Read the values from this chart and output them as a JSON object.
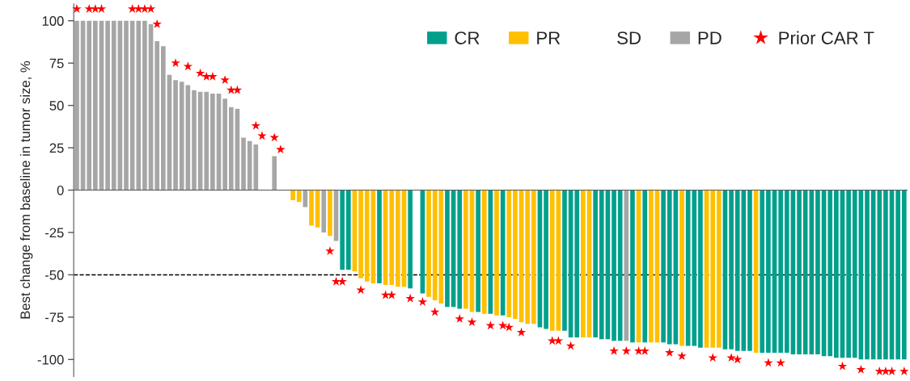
{
  "chart_data": {
    "type": "bar",
    "ylabel": "Best change from baseline in tumor size, %",
    "categories": [
      null,
      null,
      null,
      null,
      null,
      null,
      null,
      null,
      null,
      null,
      null,
      null,
      null,
      null,
      null,
      null,
      null,
      null,
      null,
      null,
      null,
      null,
      null,
      null,
      null,
      null,
      null,
      null,
      null,
      null,
      null,
      null,
      null,
      null,
      null,
      null,
      null,
      null,
      null,
      null,
      null,
      null,
      null,
      null,
      null,
      null,
      null,
      null,
      null,
      null,
      null,
      null,
      null,
      null,
      null,
      null,
      null,
      null,
      null,
      null,
      null,
      null,
      null,
      null,
      null,
      null,
      null,
      null,
      null,
      null,
      null,
      null,
      null,
      null,
      null,
      null,
      null,
      null,
      null,
      null,
      null,
      null,
      null,
      null,
      null,
      null,
      null,
      null,
      null,
      null,
      null,
      null,
      null,
      null,
      null,
      null,
      null,
      null,
      null,
      null,
      null,
      null,
      null,
      null,
      null,
      null,
      null,
      null,
      null,
      null,
      null,
      null,
      null,
      null,
      null,
      null,
      null,
      null,
      null,
      null,
      null,
      null,
      null,
      null,
      null,
      null,
      null,
      null,
      null,
      null,
      null,
      null,
      null,
      null,
      null
    ],
    "ylim": [
      -110,
      110
    ],
    "yticks": [
      -100,
      -75,
      -50,
      -25,
      0,
      25,
      50,
      75,
      100
    ],
    "tick_labels": "y",
    "legend": "top right",
    "stacked": true,
    "ref_lines": [
      {
        "axis": "y",
        "value": -50,
        "color": "#000000",
        "line_style": "dashed"
      }
    ],
    "series": [
      {
        "name": "CR",
        "color": "#00a08c",
        "values": [
          null,
          null,
          null,
          null,
          null,
          null,
          null,
          null,
          null,
          null,
          null,
          null,
          null,
          null,
          null,
          null,
          null,
          null,
          null,
          null,
          null,
          null,
          null,
          null,
          null,
          null,
          null,
          null,
          null,
          null,
          null,
          null,
          null,
          null,
          null,
          null,
          null,
          null,
          null,
          null,
          null,
          null,
          null,
          -47,
          -47,
          null,
          null,
          null,
          null,
          -55,
          null,
          null,
          null,
          null,
          -58,
          null,
          -61,
          null,
          null,
          null,
          -69,
          -69,
          -70,
          null,
          null,
          -72,
          null,
          -73,
          null,
          -74,
          null,
          null,
          null,
          null,
          null,
          -81,
          -82,
          null,
          null,
          -83,
          -87,
          -87,
          null,
          null,
          -87,
          -88,
          -88,
          -89,
          -89,
          null,
          -90,
          null,
          -90,
          null,
          null,
          -90,
          -91,
          -91,
          null,
          -92,
          -92,
          -93,
          null,
          null,
          null,
          -94,
          -94,
          -95,
          -95,
          -95,
          null,
          -96,
          -96,
          -96,
          -96,
          -96,
          -97,
          -97,
          -97,
          -97,
          -97,
          -98,
          -98,
          -99,
          -99,
          -99,
          -99,
          -100,
          -100,
          -100,
          -100,
          -100,
          -100,
          -100,
          -100
        ]
      },
      {
        "name": "PR",
        "color": "#ffc000",
        "values": [
          null,
          null,
          null,
          null,
          null,
          null,
          null,
          null,
          null,
          null,
          null,
          null,
          null,
          null,
          null,
          null,
          null,
          null,
          null,
          null,
          null,
          null,
          null,
          null,
          null,
          null,
          null,
          null,
          null,
          null,
          null,
          null,
          null,
          null,
          null,
          -6,
          -7,
          null,
          -21,
          -22,
          null,
          -27,
          null,
          null,
          null,
          -48,
          -52,
          -54,
          -55,
          null,
          -56,
          -56,
          -57,
          -57,
          null,
          null,
          null,
          -63,
          -65,
          -67,
          null,
          null,
          null,
          -70,
          -72,
          null,
          -73,
          null,
          -74,
          null,
          -75,
          -76,
          -78,
          -79,
          -79,
          null,
          null,
          -83,
          -83,
          null,
          null,
          null,
          -87,
          -87,
          null,
          null,
          null,
          null,
          null,
          null,
          null,
          -90,
          null,
          -90,
          -90,
          null,
          null,
          null,
          -92,
          null,
          null,
          null,
          -93,
          -93,
          -93,
          null,
          null,
          null,
          null,
          null,
          -96,
          null,
          null,
          null,
          null,
          null,
          null,
          null,
          null,
          null,
          null,
          null,
          null,
          null,
          null,
          null,
          null,
          null,
          null,
          null,
          null,
          null,
          null,
          null,
          null
        ]
      },
      {
        "name": "SD",
        "values": [
          null,
          null,
          null,
          null,
          null,
          null,
          null,
          null,
          null,
          null,
          null,
          null,
          null,
          null,
          null,
          null,
          null,
          null,
          null,
          null,
          null,
          null,
          null,
          null,
          null,
          null,
          null,
          null,
          null,
          null,
          null,
          null,
          null,
          null,
          null,
          null,
          null,
          null,
          null,
          null,
          null,
          null,
          null,
          null,
          null,
          null,
          null,
          null,
          null,
          null,
          null,
          null,
          null,
          null,
          null,
          null,
          null,
          null,
          null,
          null,
          null,
          null,
          null,
          null,
          null,
          null,
          null,
          null,
          null,
          null,
          null,
          null,
          null,
          null,
          null,
          null,
          null,
          null,
          null,
          null,
          null,
          null,
          null,
          null,
          null,
          null,
          null,
          null,
          null,
          null,
          null,
          null,
          null,
          null,
          null,
          null,
          null,
          null,
          null,
          null,
          null,
          null,
          null,
          null,
          null,
          null,
          null,
          null,
          null,
          null,
          null,
          null,
          null,
          null,
          null,
          null,
          null,
          null,
          null,
          null,
          null,
          null,
          null,
          null,
          null,
          null,
          null,
          null,
          null,
          null,
          null,
          null,
          null,
          null,
          null
        ]
      },
      {
        "name": "PD",
        "color": "#a6a6a6",
        "values": [
          100,
          100,
          100,
          100,
          100,
          100,
          100,
          100,
          100,
          100,
          100,
          100,
          98,
          88,
          85,
          68,
          65,
          64,
          62,
          59,
          58,
          58,
          57,
          57,
          54,
          49,
          48,
          31,
          29,
          27,
          null,
          null,
          20,
          null,
          null,
          null,
          null,
          -10,
          null,
          null,
          -25,
          null,
          -30,
          null,
          null,
          null,
          null,
          null,
          null,
          null,
          null,
          null,
          null,
          null,
          null,
          null,
          null,
          null,
          null,
          null,
          null,
          null,
          null,
          null,
          null,
          null,
          null,
          null,
          null,
          null,
          null,
          null,
          null,
          null,
          null,
          null,
          null,
          null,
          null,
          null,
          null,
          null,
          null,
          null,
          null,
          null,
          null,
          null,
          null,
          -89,
          null,
          null,
          null,
          null,
          null,
          null,
          null,
          null,
          null,
          null,
          null,
          null,
          null,
          null,
          null,
          null,
          null,
          null,
          null,
          null,
          null,
          null,
          null,
          null,
          null,
          null,
          null,
          null,
          null,
          null,
          null,
          null,
          null,
          null,
          null,
          null,
          null,
          null,
          null,
          null,
          null,
          null,
          null,
          null,
          null
        ]
      },
      {
        "name": "Prior CAR T",
        "type": "scatter",
        "marker": "star",
        "color": "#ff0000",
        "values": [
          107,
          null,
          107,
          107,
          107,
          null,
          null,
          null,
          null,
          107,
          107,
          107,
          107,
          98,
          null,
          null,
          75,
          null,
          73,
          null,
          69,
          67,
          67,
          null,
          65,
          59,
          59,
          null,
          null,
          38,
          32,
          null,
          31,
          24,
          null,
          null,
          null,
          null,
          null,
          null,
          null,
          -36,
          -54,
          -54,
          null,
          null,
          -59,
          null,
          null,
          null,
          -62,
          -62,
          null,
          null,
          -64,
          null,
          -66,
          null,
          -72,
          null,
          null,
          null,
          -76,
          null,
          -78,
          null,
          null,
          -80,
          null,
          -80,
          -81,
          null,
          -84,
          null,
          null,
          null,
          null,
          -89,
          -89,
          null,
          -92,
          null,
          null,
          null,
          null,
          null,
          null,
          -95,
          null,
          -95,
          null,
          -95,
          -95,
          null,
          null,
          null,
          -96,
          null,
          -98,
          null,
          null,
          null,
          null,
          -99,
          null,
          null,
          -99,
          -100,
          null,
          null,
          null,
          null,
          -102,
          null,
          -102,
          null,
          null,
          null,
          null,
          null,
          null,
          null,
          null,
          null,
          -104,
          null,
          null,
          -106,
          null,
          null,
          -107,
          -107,
          -107,
          null,
          -107
        ]
      }
    ]
  }
}
